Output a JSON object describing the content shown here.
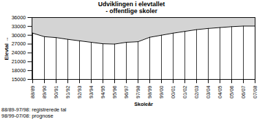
{
  "chart_data": {
    "type": "area",
    "title": "Udviklingen i elevtallet",
    "subtitle": "- offentlige skoler",
    "x_label": "Skoleår",
    "y_label": "Elevtal",
    "annotations": [
      "88/89-97/98: registrerede tal",
      "98/99-07/08: prognose"
    ],
    "categories": [
      "88/89",
      "89/90",
      "90/91",
      "91/92",
      "92/93",
      "93/94",
      "94/95",
      "95/96",
      "96/97",
      "97/98",
      "98/99",
      "99/00",
      "00/01",
      "01/02",
      "02/03",
      "03/04",
      "04/05",
      "05/06",
      "06/07",
      "07/08"
    ],
    "values": [
      30700,
      29500,
      29200,
      28600,
      28100,
      27600,
      27100,
      27000,
      27600,
      27800,
      29300,
      30000,
      30700,
      31300,
      31900,
      32300,
      32600,
      32900,
      33100,
      33100
    ],
    "color": "#d4d4d4",
    "ylim": [
      15000,
      36000
    ],
    "yticks": [
      15000,
      18000,
      21000,
      24000,
      27000,
      30000,
      33000,
      36000
    ],
    "grid": false
  }
}
